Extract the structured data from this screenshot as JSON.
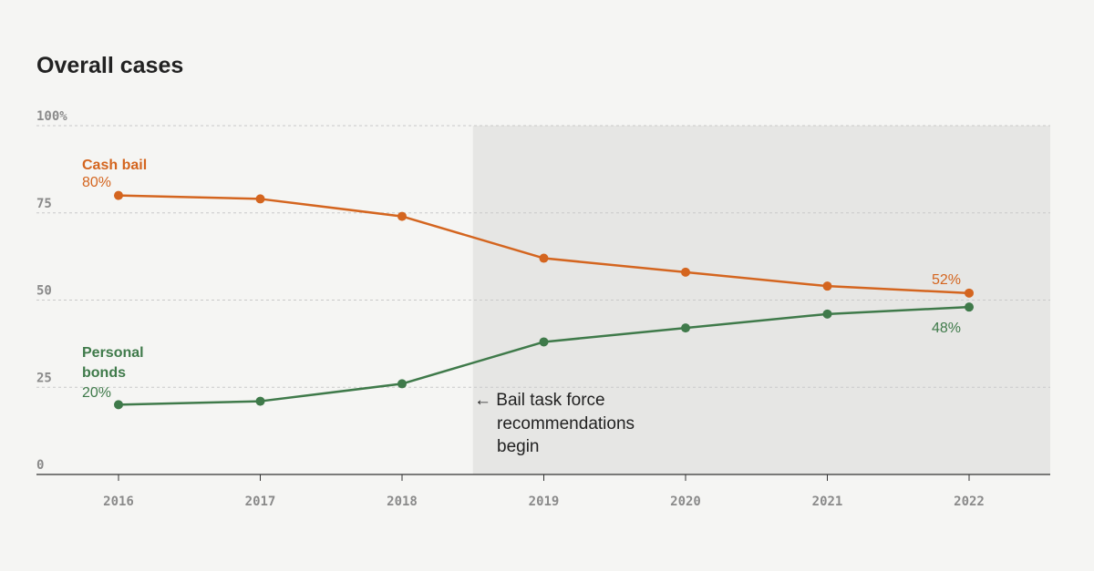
{
  "title": {
    "bold": "Overall",
    "rest": " cases"
  },
  "colors": {
    "cash_bail": "#d4651f",
    "personal_bonds": "#3f7a4a",
    "shade": "#e6e6e4",
    "grid": "#c9c9c9",
    "axis": "#333333"
  },
  "annotation": {
    "lines": [
      "← Bail task force",
      "recommendations",
      "begin"
    ]
  },
  "labels": {
    "cash_bail": {
      "name": "Cash bail",
      "start": "80%",
      "end": "52%"
    },
    "personal_bonds": {
      "name_lines": [
        "Personal",
        "bonds"
      ],
      "start": "20%",
      "end": "48%"
    }
  },
  "chart_data": {
    "type": "line",
    "title": "Overall cases",
    "x": [
      "2016",
      "2017",
      "2018",
      "2019",
      "2020",
      "2021",
      "2022"
    ],
    "series": [
      {
        "name": "Cash bail",
        "values": [
          80,
          79,
          74,
          62,
          58,
          54,
          52
        ]
      },
      {
        "name": "Personal bonds",
        "values": [
          20,
          21,
          26,
          38,
          42,
          46,
          48
        ]
      }
    ],
    "ylim": [
      0,
      100
    ],
    "yticks": [
      "0",
      "25",
      "50",
      "75",
      "100%"
    ],
    "yticks_values": [
      0,
      25,
      50,
      75,
      100
    ],
    "shaded_from": "2018.5",
    "grid": true
  }
}
